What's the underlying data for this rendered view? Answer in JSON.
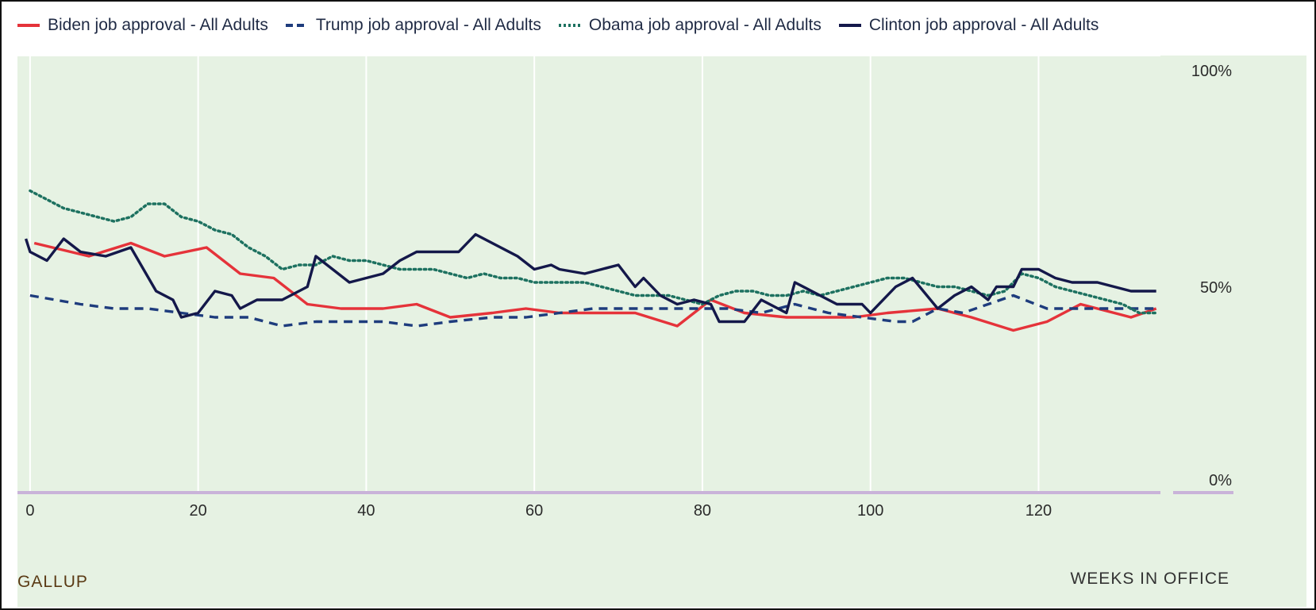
{
  "chart_data": {
    "type": "line",
    "xlabel": "WEEKS IN OFFICE",
    "ylabel": "",
    "xlim": [
      -1.5,
      134.5
    ],
    "ylim": [
      0,
      100
    ],
    "x_ticks": [
      {
        "value": 0,
        "label": "0"
      },
      {
        "value": 20,
        "label": "20"
      },
      {
        "value": 40,
        "label": "40"
      },
      {
        "value": 60,
        "label": "60"
      },
      {
        "value": 80,
        "label": "80"
      },
      {
        "value": 100,
        "label": "100"
      },
      {
        "value": 120,
        "label": "120"
      }
    ],
    "y_ticks": [
      {
        "value": 100,
        "label": "100%"
      },
      {
        "value": 50,
        "label": "50%"
      },
      {
        "value": 0,
        "label": "0%"
      }
    ],
    "grid": "vertical",
    "legend_position": "top-left",
    "source": "GALLUP",
    "series": [
      {
        "name": "Biden job approval - All Adults",
        "color": "#e5333a",
        "dash": "solid",
        "points": [
          [
            0.5,
            57
          ],
          [
            7,
            54
          ],
          [
            12,
            57
          ],
          [
            16,
            54
          ],
          [
            21,
            56
          ],
          [
            25,
            50
          ],
          [
            29,
            49
          ],
          [
            33,
            43
          ],
          [
            37,
            42
          ],
          [
            42,
            42
          ],
          [
            46,
            43
          ],
          [
            50,
            40
          ],
          [
            55,
            41
          ],
          [
            59,
            42
          ],
          [
            63,
            41
          ],
          [
            68,
            41
          ],
          [
            72,
            41
          ],
          [
            77,
            38
          ],
          [
            81,
            44
          ],
          [
            85,
            41
          ],
          [
            90,
            40
          ],
          [
            94,
            40
          ],
          [
            98,
            40
          ],
          [
            102,
            41
          ],
          [
            108,
            42
          ],
          [
            112,
            40
          ],
          [
            117,
            37
          ],
          [
            121,
            39
          ],
          [
            125,
            43
          ],
          [
            129,
            41
          ],
          [
            131,
            40
          ],
          [
            134,
            42
          ]
        ]
      },
      {
        "name": "Trump job approval - All Adults",
        "color": "#1e3c7d",
        "dash": "dashed",
        "points": [
          [
            0,
            45
          ],
          [
            3,
            44
          ],
          [
            6,
            43
          ],
          [
            10,
            42
          ],
          [
            14,
            42
          ],
          [
            18,
            41
          ],
          [
            22,
            40
          ],
          [
            26,
            40
          ],
          [
            30,
            38
          ],
          [
            34,
            39
          ],
          [
            38,
            39
          ],
          [
            42,
            39
          ],
          [
            46,
            38
          ],
          [
            50,
            39
          ],
          [
            55,
            40
          ],
          [
            59,
            40
          ],
          [
            63,
            41
          ],
          [
            67,
            42
          ],
          [
            71,
            42
          ],
          [
            75,
            42
          ],
          [
            79,
            42
          ],
          [
            83,
            42
          ],
          [
            87,
            41
          ],
          [
            91,
            43
          ],
          [
            95,
            41
          ],
          [
            99,
            40
          ],
          [
            103,
            39
          ],
          [
            105,
            39
          ],
          [
            108,
            42
          ],
          [
            111,
            41
          ],
          [
            114,
            43
          ],
          [
            117,
            45
          ],
          [
            121,
            42
          ],
          [
            125,
            42
          ],
          [
            130,
            42
          ],
          [
            134,
            42
          ]
        ]
      },
      {
        "name": "Obama job approval - All Adults",
        "color": "#1d7160",
        "dash": "dotted",
        "points": [
          [
            0,
            69
          ],
          [
            2,
            67
          ],
          [
            4,
            65
          ],
          [
            6,
            64
          ],
          [
            8,
            63
          ],
          [
            10,
            62
          ],
          [
            12,
            63
          ],
          [
            14,
            66
          ],
          [
            16,
            66
          ],
          [
            18,
            63
          ],
          [
            20,
            62
          ],
          [
            22,
            60
          ],
          [
            24,
            59
          ],
          [
            26,
            56
          ],
          [
            28,
            54
          ],
          [
            30,
            51
          ],
          [
            32,
            52
          ],
          [
            34,
            52
          ],
          [
            36,
            54
          ],
          [
            38,
            53
          ],
          [
            40,
            53
          ],
          [
            42,
            52
          ],
          [
            44,
            51
          ],
          [
            46,
            51
          ],
          [
            48,
            51
          ],
          [
            50,
            50
          ],
          [
            52,
            49
          ],
          [
            54,
            50
          ],
          [
            56,
            49
          ],
          [
            58,
            49
          ],
          [
            60,
            48
          ],
          [
            62,
            48
          ],
          [
            64,
            48
          ],
          [
            66,
            48
          ],
          [
            68,
            47
          ],
          [
            70,
            46
          ],
          [
            72,
            45
          ],
          [
            74,
            45
          ],
          [
            76,
            45
          ],
          [
            78,
            44
          ],
          [
            80,
            43
          ],
          [
            82,
            45
          ],
          [
            84,
            46
          ],
          [
            86,
            46
          ],
          [
            88,
            45
          ],
          [
            90,
            45
          ],
          [
            92,
            46
          ],
          [
            94,
            45
          ],
          [
            96,
            46
          ],
          [
            98,
            47
          ],
          [
            100,
            48
          ],
          [
            102,
            49
          ],
          [
            104,
            49
          ],
          [
            106,
            48
          ],
          [
            108,
            47
          ],
          [
            110,
            47
          ],
          [
            112,
            46
          ],
          [
            114,
            45
          ],
          [
            116,
            46
          ],
          [
            118,
            50
          ],
          [
            120,
            49
          ],
          [
            122,
            47
          ],
          [
            124,
            46
          ],
          [
            126,
            45
          ],
          [
            128,
            44
          ],
          [
            130,
            43
          ],
          [
            132,
            41
          ],
          [
            134,
            41
          ]
        ]
      },
      {
        "name": "Clinton job approval - All Adults",
        "color": "#14184a",
        "dash": "solid",
        "points": [
          [
            -0.5,
            58
          ],
          [
            0,
            55
          ],
          [
            2,
            53
          ],
          [
            4,
            58
          ],
          [
            6,
            55
          ],
          [
            9,
            54
          ],
          [
            12,
            56
          ],
          [
            15,
            46
          ],
          [
            17,
            44
          ],
          [
            18,
            40
          ],
          [
            20,
            41
          ],
          [
            22,
            46
          ],
          [
            24,
            45
          ],
          [
            25,
            42
          ],
          [
            27,
            44
          ],
          [
            30,
            44
          ],
          [
            33,
            47
          ],
          [
            34,
            54
          ],
          [
            36,
            51
          ],
          [
            38,
            48
          ],
          [
            40,
            49
          ],
          [
            42,
            50
          ],
          [
            44,
            53
          ],
          [
            46,
            55
          ],
          [
            49,
            55
          ],
          [
            51,
            55
          ],
          [
            53,
            59
          ],
          [
            56,
            56
          ],
          [
            58,
            54
          ],
          [
            60,
            51
          ],
          [
            62,
            52
          ],
          [
            63,
            51
          ],
          [
            66,
            50
          ],
          [
            68,
            51
          ],
          [
            70,
            52
          ],
          [
            72,
            47
          ],
          [
            73,
            49
          ],
          [
            75,
            45
          ],
          [
            77,
            43
          ],
          [
            79,
            44
          ],
          [
            81,
            43
          ],
          [
            82,
            39
          ],
          [
            85,
            39
          ],
          [
            87,
            44
          ],
          [
            90,
            41
          ],
          [
            91,
            48
          ],
          [
            93,
            46
          ],
          [
            96,
            43
          ],
          [
            99,
            43
          ],
          [
            100,
            41
          ],
          [
            103,
            47
          ],
          [
            105,
            49
          ],
          [
            108,
            42
          ],
          [
            110,
            45
          ],
          [
            112,
            47
          ],
          [
            114,
            44
          ],
          [
            115,
            47
          ],
          [
            117,
            47
          ],
          [
            118,
            51
          ],
          [
            120,
            51
          ],
          [
            122,
            49
          ],
          [
            124,
            48
          ],
          [
            127,
            48
          ],
          [
            129,
            47
          ],
          [
            131,
            46
          ],
          [
            134,
            46
          ]
        ]
      }
    ]
  }
}
